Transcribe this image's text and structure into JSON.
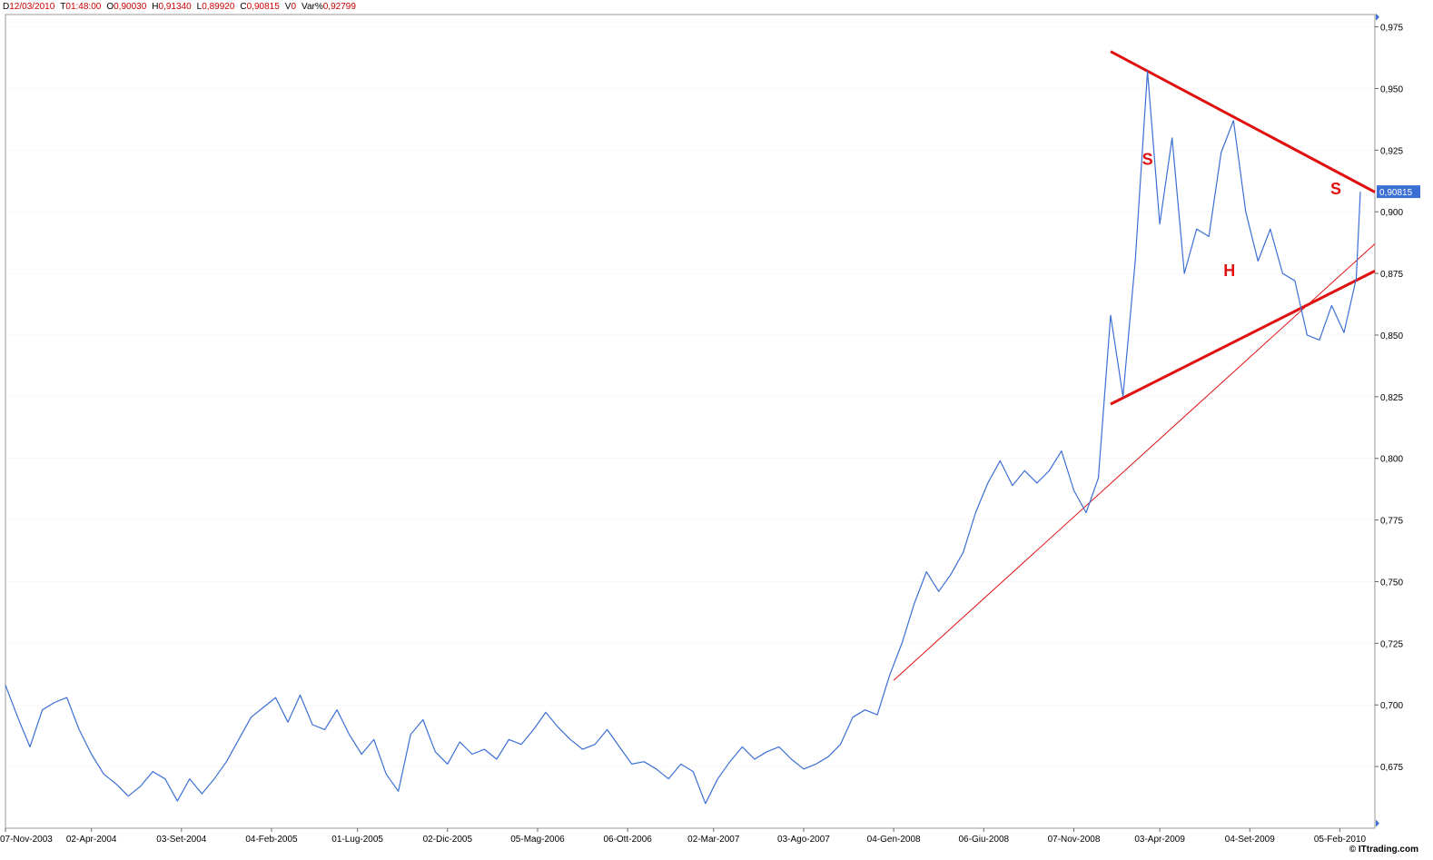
{
  "header": {
    "fields": [
      {
        "key": "D",
        "value": "12/03/2010"
      },
      {
        "key": "T",
        "value": "01:48:00"
      },
      {
        "key": "O",
        "value": "0,90030"
      },
      {
        "key": "H",
        "value": "0,91340"
      },
      {
        "key": "L",
        "value": "0,89920"
      },
      {
        "key": "C",
        "value": "0,90815"
      },
      {
        "key": "V",
        "value": "0"
      },
      {
        "key": "Var%",
        "value": "0,92799"
      }
    ]
  },
  "credit": "© ITtrading.com",
  "colors": {
    "line": "#3c6fd4",
    "trend": "#e01010",
    "grid": "#d8d8d8",
    "badge": "#3c6fd4"
  },
  "chart_data": {
    "type": "line",
    "x_dates": [
      "2003-11-07",
      "2004-04-02",
      "2004-09-03",
      "2005-02-04",
      "2005-07-01",
      "2005-12-02",
      "2006-05-05",
      "2006-10-06",
      "2007-03-02",
      "2007-08-03",
      "2008-01-04",
      "2008-06-06",
      "2008-11-07",
      "2009-04-03",
      "2009-09-04",
      "2010-02-05",
      "2010-03-12"
    ],
    "x_tick_labels": [
      "07-Nov-2003",
      "02-Apr-2004",
      "03-Set-2004",
      "04-Feb-2005",
      "01-Lug-2005",
      "02-Dic-2005",
      "05-Mag-2006",
      "06-Ott-2006",
      "02-Mar-2007",
      "03-Ago-2007",
      "04-Gen-2008",
      "06-Giu-2008",
      "07-Nov-2008",
      "03-Apr-2009",
      "04-Set-2009",
      "05-Feb-2010"
    ],
    "y_ticks": [
      "0,675",
      "0,700",
      "0,725",
      "0,750",
      "0,775",
      "0,800",
      "0,825",
      "0,850",
      "0,875",
      "0,900",
      "0,925",
      "0,950",
      "0,975"
    ],
    "ylim": [
      0.65,
      0.98
    ],
    "last_value_label": "0,90815",
    "last_value": 0.90815,
    "series": [
      {
        "points": [
          [
            "2003-11-07",
            0.708
          ],
          [
            "2003-11-28",
            0.695
          ],
          [
            "2003-12-19",
            0.683
          ],
          [
            "2004-01-09",
            0.698
          ],
          [
            "2004-01-30",
            0.701
          ],
          [
            "2004-02-20",
            0.703
          ],
          [
            "2004-03-12",
            0.69
          ],
          [
            "2004-04-02",
            0.68
          ],
          [
            "2004-04-23",
            0.672
          ],
          [
            "2004-05-14",
            0.668
          ],
          [
            "2004-06-04",
            0.663
          ],
          [
            "2004-06-25",
            0.667
          ],
          [
            "2004-07-16",
            0.673
          ],
          [
            "2004-08-06",
            0.67
          ],
          [
            "2004-08-27",
            0.661
          ],
          [
            "2004-09-17",
            0.67
          ],
          [
            "2004-10-08",
            0.664
          ],
          [
            "2004-10-29",
            0.67
          ],
          [
            "2004-11-19",
            0.677
          ],
          [
            "2004-12-10",
            0.686
          ],
          [
            "2004-12-31",
            0.695
          ],
          [
            "2005-01-21",
            0.699
          ],
          [
            "2005-02-11",
            0.703
          ],
          [
            "2005-03-04",
            0.693
          ],
          [
            "2005-03-25",
            0.704
          ],
          [
            "2005-04-15",
            0.692
          ],
          [
            "2005-05-06",
            0.69
          ],
          [
            "2005-05-27",
            0.698
          ],
          [
            "2005-06-17",
            0.688
          ],
          [
            "2005-07-08",
            0.68
          ],
          [
            "2005-07-29",
            0.686
          ],
          [
            "2005-08-19",
            0.672
          ],
          [
            "2005-09-09",
            0.665
          ],
          [
            "2005-09-30",
            0.688
          ],
          [
            "2005-10-21",
            0.694
          ],
          [
            "2005-11-11",
            0.681
          ],
          [
            "2005-12-02",
            0.676
          ],
          [
            "2005-12-23",
            0.685
          ],
          [
            "2006-01-13",
            0.68
          ],
          [
            "2006-02-03",
            0.682
          ],
          [
            "2006-02-24",
            0.678
          ],
          [
            "2006-03-17",
            0.686
          ],
          [
            "2006-04-07",
            0.684
          ],
          [
            "2006-04-28",
            0.69
          ],
          [
            "2006-05-19",
            0.697
          ],
          [
            "2006-06-09",
            0.691
          ],
          [
            "2006-06-30",
            0.686
          ],
          [
            "2006-07-21",
            0.682
          ],
          [
            "2006-08-11",
            0.684
          ],
          [
            "2006-09-01",
            0.69
          ],
          [
            "2006-09-22",
            0.683
          ],
          [
            "2006-10-13",
            0.676
          ],
          [
            "2006-11-03",
            0.677
          ],
          [
            "2006-11-24",
            0.674
          ],
          [
            "2006-12-15",
            0.67
          ],
          [
            "2007-01-05",
            0.676
          ],
          [
            "2007-01-26",
            0.673
          ],
          [
            "2007-02-16",
            0.66
          ],
          [
            "2007-03-09",
            0.67
          ],
          [
            "2007-03-30",
            0.677
          ],
          [
            "2007-04-20",
            0.683
          ],
          [
            "2007-05-11",
            0.678
          ],
          [
            "2007-06-01",
            0.681
          ],
          [
            "2007-06-22",
            0.683
          ],
          [
            "2007-07-13",
            0.678
          ],
          [
            "2007-08-03",
            0.674
          ],
          [
            "2007-08-24",
            0.676
          ],
          [
            "2007-09-14",
            0.679
          ],
          [
            "2007-10-05",
            0.684
          ],
          [
            "2007-10-26",
            0.695
          ],
          [
            "2007-11-16",
            0.698
          ],
          [
            "2007-12-07",
            0.696
          ],
          [
            "2007-12-28",
            0.712
          ],
          [
            "2008-01-18",
            0.725
          ],
          [
            "2008-02-08",
            0.741
          ],
          [
            "2008-02-29",
            0.754
          ],
          [
            "2008-03-21",
            0.746
          ],
          [
            "2008-04-11",
            0.753
          ],
          [
            "2008-05-02",
            0.762
          ],
          [
            "2008-05-23",
            0.778
          ],
          [
            "2008-06-13",
            0.79
          ],
          [
            "2008-07-04",
            0.799
          ],
          [
            "2008-07-25",
            0.789
          ],
          [
            "2008-08-15",
            0.795
          ],
          [
            "2008-09-05",
            0.79
          ],
          [
            "2008-09-26",
            0.795
          ],
          [
            "2008-10-17",
            0.803
          ],
          [
            "2008-11-07",
            0.787
          ],
          [
            "2008-11-28",
            0.778
          ],
          [
            "2008-12-19",
            0.792
          ],
          [
            "2009-01-09",
            0.858
          ],
          [
            "2009-01-30",
            0.825
          ],
          [
            "2009-02-20",
            0.88
          ],
          [
            "2009-03-13",
            0.957
          ],
          [
            "2009-04-03",
            0.895
          ],
          [
            "2009-04-24",
            0.93
          ],
          [
            "2009-05-15",
            0.875
          ],
          [
            "2009-06-05",
            0.893
          ],
          [
            "2009-06-26",
            0.89
          ],
          [
            "2009-07-17",
            0.924
          ],
          [
            "2009-08-07",
            0.937
          ],
          [
            "2009-08-28",
            0.9
          ],
          [
            "2009-09-18",
            0.88
          ],
          [
            "2009-10-09",
            0.893
          ],
          [
            "2009-10-30",
            0.875
          ],
          [
            "2009-11-20",
            0.872
          ],
          [
            "2009-12-11",
            0.85
          ],
          [
            "2010-01-01",
            0.848
          ],
          [
            "2010-01-22",
            0.862
          ],
          [
            "2010-02-12",
            0.851
          ],
          [
            "2010-03-05",
            0.873
          ],
          [
            "2010-03-12",
            0.90815
          ]
        ]
      }
    ],
    "trendlines": [
      {
        "from": [
          "2009-01-09",
          0.965
        ],
        "to": [
          "2010-03-12",
          0.908
        ]
      },
      {
        "from": [
          "2009-01-09",
          0.822
        ],
        "to": [
          "2010-03-12",
          0.876
        ]
      },
      {
        "from": [
          "2008-01-04",
          0.71
        ],
        "to": [
          "2010-03-12",
          0.887
        ]
      }
    ],
    "annotations": [
      {
        "text": "S",
        "at": [
          "2009-03-13",
          0.919
        ]
      },
      {
        "text": "H",
        "at": [
          "2009-07-31",
          0.874
        ]
      },
      {
        "text": "S",
        "at": [
          "2010-01-29",
          0.907
        ]
      }
    ]
  }
}
